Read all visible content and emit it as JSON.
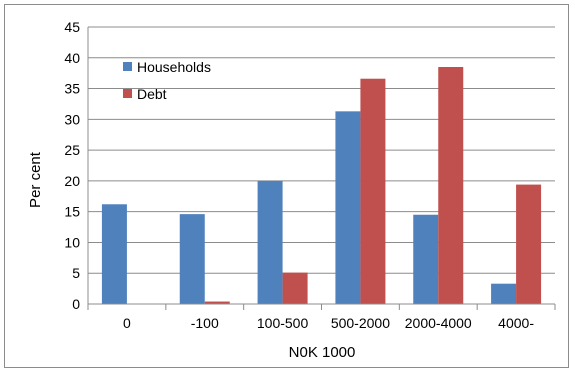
{
  "chart_data": {
    "type": "bar",
    "categories": [
      "0",
      "-100",
      "100-500",
      "500-2000",
      "2000-4000",
      "4000-"
    ],
    "series": [
      {
        "name": "Households",
        "color": "#4f81bd",
        "values": [
          16.2,
          14.6,
          20.0,
          31.3,
          14.5,
          3.3
        ]
      },
      {
        "name": "Debt",
        "color": "#c0504d",
        "values": [
          0,
          0.4,
          5.1,
          36.6,
          38.5,
          19.4
        ]
      }
    ],
    "title": "",
    "xlabel": "N0K 1000",
    "ylabel": "Per cent",
    "ylim": [
      0,
      45
    ],
    "yticks": [
      "0",
      "5",
      "10",
      "15",
      "20",
      "25",
      "30",
      "35",
      "40",
      "45"
    ],
    "grid": true,
    "legend": "top-left"
  }
}
